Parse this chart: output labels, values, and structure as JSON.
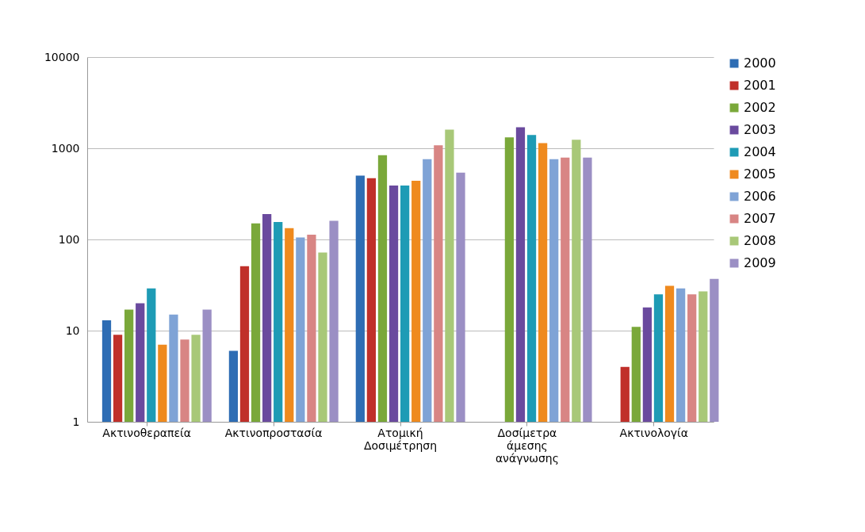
{
  "chart_data": {
    "type": "bar",
    "categories": [
      "Ακτινοθεραπεία",
      "Ακτινοπροστασία",
      "Ατομική Δοσιμέτρηση",
      "Δοσίμετρα άμεσης ανάγνωσης",
      "Ακτινολογία"
    ],
    "log": "y",
    "ylim": [
      1,
      10000
    ],
    "yticks": [
      1,
      10,
      100,
      1000,
      10000
    ],
    "grid": "y",
    "legend": "right",
    "series": [
      {
        "name": "2000",
        "color": "#2e6db4",
        "values": [
          13,
          6,
          500,
          null,
          null
        ]
      },
      {
        "name": "2001",
        "color": "#c0302a",
        "values": [
          9,
          51,
          470,
          null,
          4
        ]
      },
      {
        "name": "2002",
        "color": "#7aa83a",
        "values": [
          17,
          150,
          840,
          1320,
          11
        ]
      },
      {
        "name": "2003",
        "color": "#6a4a9e",
        "values": [
          20,
          190,
          390,
          1700,
          18
        ]
      },
      {
        "name": "2004",
        "color": "#1e9bb5",
        "values": [
          29,
          155,
          390,
          1400,
          25
        ]
      },
      {
        "name": "2005",
        "color": "#ef8a1e",
        "values": [
          7,
          133,
          440,
          1140,
          31
        ]
      },
      {
        "name": "2006",
        "color": "#7fa3d6",
        "values": [
          15,
          105,
          760,
          760,
          29
        ]
      },
      {
        "name": "2007",
        "color": "#d88584",
        "values": [
          8,
          113,
          1080,
          790,
          25
        ]
      },
      {
        "name": "2008",
        "color": "#a8c878",
        "values": [
          9,
          72,
          1600,
          1240,
          27
        ]
      },
      {
        "name": "2009",
        "color": "#9b8fc4",
        "values": [
          17,
          160,
          540,
          790,
          37
        ]
      }
    ]
  }
}
